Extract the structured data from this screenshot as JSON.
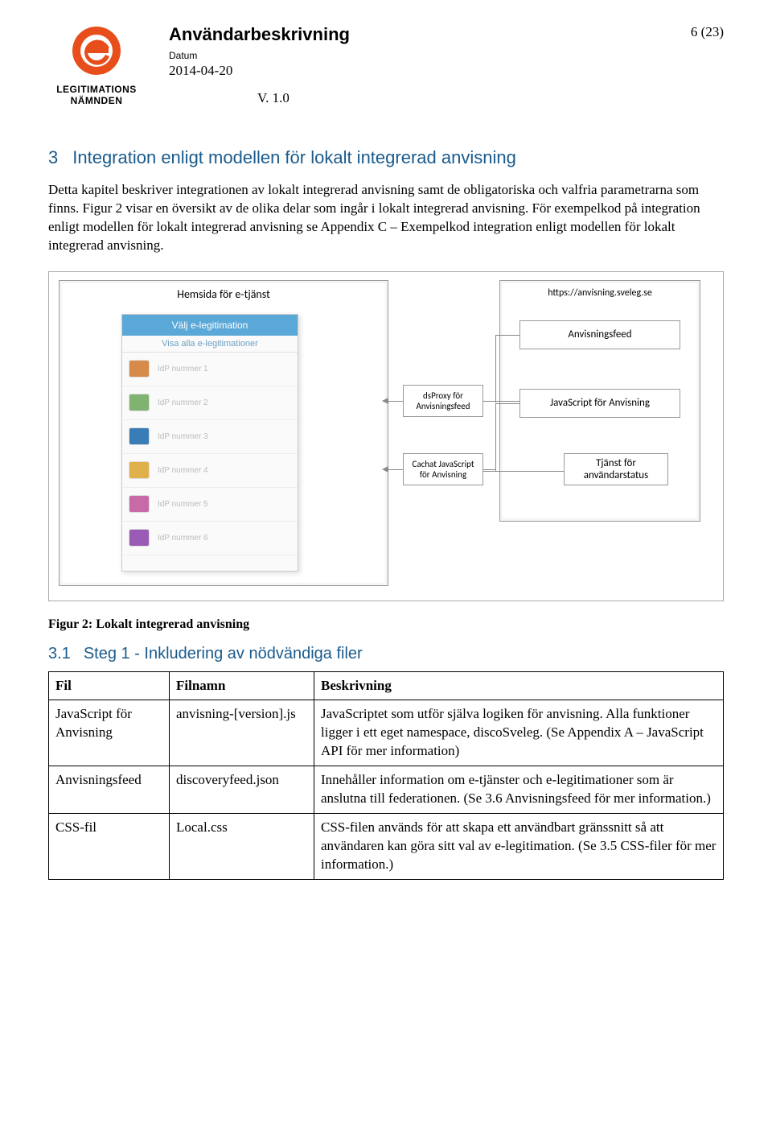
{
  "header": {
    "logo_line1": "LEGITIMATIONS",
    "logo_line2": "NÄMNDEN",
    "doc_title": "Användarbeskrivning",
    "datum_label": "Datum",
    "date": "2014-04-20",
    "version": "V. 1.0",
    "page": "6 (23)"
  },
  "section": {
    "number": "3",
    "title": "Integration enligt modellen för lokalt integrerad anvisning",
    "paragraph": "Detta kapitel beskriver integrationen av lokalt integrerad anvisning samt de obligatoriska och valfria parametrarna som finns. Figur 2 visar en översikt av de olika delar som ingår i lokalt integrerad anvisning. För exempelkod på integration enligt modellen för lokalt integrerad anvisning se Appendix C – Exempelkod integration enligt modellen för lokalt integrerad anvisning."
  },
  "diagram": {
    "left_title": "Hemsida för e-tjänst",
    "url_label": "https://anvisning.sveleg.se",
    "boxes": {
      "anvisningsfeed": "Anvisningsfeed",
      "dsproxy": "dsProxy för Anvisningsfeed",
      "js_anvisning": "JavaScript för Anvisning",
      "cachat": "Cachat JavaScript för Anvisning",
      "tjanst": "Tjänst för användarstatus"
    },
    "idp": {
      "header": "Välj e-legitimation",
      "sub": "Visa alla e-legitimationer",
      "rows": [
        {
          "color": "#d68b4a",
          "label": "IdP nummer 1"
        },
        {
          "color": "#7fb36f",
          "label": "IdP nummer 2"
        },
        {
          "color": "#3a7cb5",
          "label": "IdP nummer 3"
        },
        {
          "color": "#e0b04c",
          "label": "IdP nummer 4"
        },
        {
          "color": "#c76aa8",
          "label": "IdP nummer 5"
        },
        {
          "color": "#9a5bb5",
          "label": "IdP nummer 6"
        }
      ]
    }
  },
  "figure_caption": "Figur 2: Lokalt integrerad anvisning",
  "subsection": {
    "number": "3.1",
    "title": "Steg 1 - Inkludering av nödvändiga filer"
  },
  "table": {
    "headers": {
      "fil": "Fil",
      "filnamn": "Filnamn",
      "beskrivning": "Beskrivning"
    },
    "rows": [
      {
        "fil": "JavaScript för Anvisning",
        "filnamn": "anvisning-[version].js",
        "beskrivning": "JavaScriptet som utför själva logiken för anvisning. Alla funktioner ligger i ett eget namespace, discoSveleg. (Se Appendix A – JavaScript API för mer information)"
      },
      {
        "fil": "Anvisningsfeed",
        "filnamn": "discoveryfeed.json",
        "beskrivning": "Innehåller information om e-tjänster och e-legitimationer som är anslutna till federationen. (Se 3.6 Anvisningsfeed för mer information.)"
      },
      {
        "fil": "CSS-fil",
        "filnamn": "Local.css",
        "beskrivning": "CSS-filen används för att skapa ett användbart gränssnitt så att användaren kan göra sitt val av e-legitimation. (Se 3.5 CSS-filer för mer information.)"
      }
    ]
  },
  "colors": {
    "logo_orange": "#e84e1b",
    "heading_blue": "#1a5b8c"
  }
}
